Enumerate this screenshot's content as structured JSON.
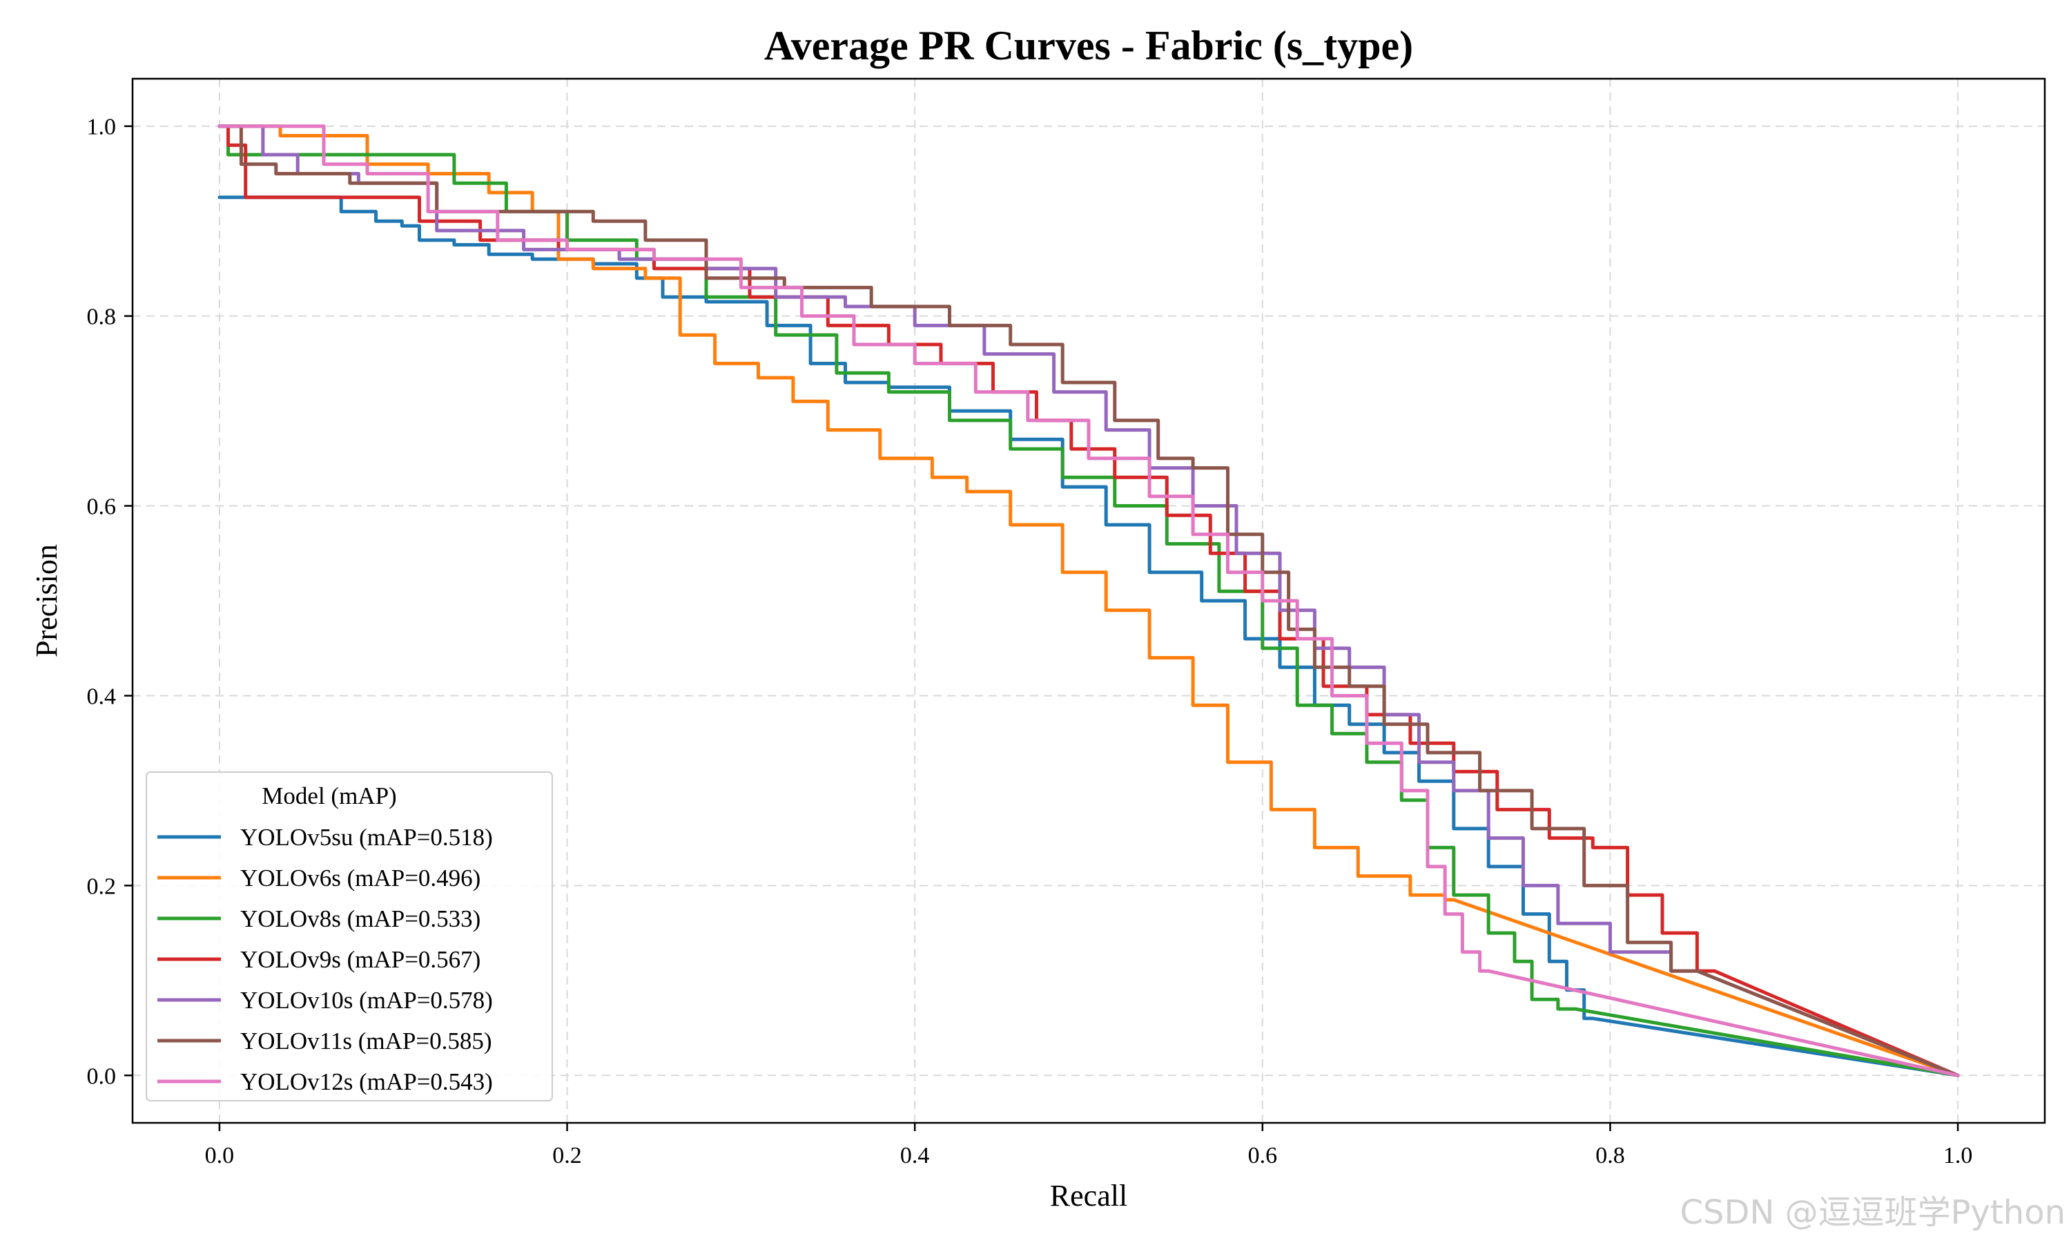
{
  "chart_data": {
    "type": "line",
    "title": "Average PR Curves - Fabric (s_type)",
    "xlabel": "Recall",
    "ylabel": "Precision",
    "xlim": [
      -0.05,
      1.05
    ],
    "ylim": [
      -0.05,
      1.05
    ],
    "xticks": [
      "0.0",
      "0.2",
      "0.4",
      "0.6",
      "0.8",
      "1.0"
    ],
    "yticks": [
      "0.0",
      "0.2",
      "0.4",
      "0.6",
      "0.8",
      "1.0"
    ],
    "grid": true,
    "legend": {
      "title": "Model (mAP)",
      "placement": "lower-left"
    },
    "series": [
      {
        "name": "YOLOv5su (mAP=0.518)",
        "color": "#1f77b4",
        "points": [
          [
            0.0,
            0.925
          ],
          [
            0.06,
            0.925
          ],
          [
            0.08,
            0.91
          ],
          [
            0.1,
            0.9
          ],
          [
            0.11,
            0.895
          ],
          [
            0.12,
            0.88
          ],
          [
            0.15,
            0.875
          ],
          [
            0.16,
            0.865
          ],
          [
            0.2,
            0.86
          ],
          [
            0.23,
            0.855
          ],
          [
            0.25,
            0.84
          ],
          [
            0.26,
            0.82
          ],
          [
            0.3,
            0.815
          ],
          [
            0.33,
            0.79
          ],
          [
            0.35,
            0.75
          ],
          [
            0.37,
            0.73
          ],
          [
            0.4,
            0.725
          ],
          [
            0.44,
            0.7
          ],
          [
            0.47,
            0.67
          ],
          [
            0.5,
            0.62
          ],
          [
            0.52,
            0.58
          ],
          [
            0.55,
            0.53
          ],
          [
            0.58,
            0.5
          ],
          [
            0.6,
            0.46
          ],
          [
            0.62,
            0.43
          ],
          [
            0.64,
            0.39
          ],
          [
            0.66,
            0.37
          ],
          [
            0.68,
            0.34
          ],
          [
            0.7,
            0.31
          ],
          [
            0.72,
            0.26
          ],
          [
            0.74,
            0.22
          ],
          [
            0.76,
            0.17
          ],
          [
            0.77,
            0.12
          ],
          [
            0.78,
            0.09
          ],
          [
            0.79,
            0.06
          ],
          [
            1.0,
            0.0
          ]
        ]
      },
      {
        "name": "YOLOv6s (mAP=0.496)",
        "color": "#ff7f0e",
        "points": [
          [
            0.0,
            1.0
          ],
          [
            0.07,
            0.99
          ],
          [
            0.1,
            0.96
          ],
          [
            0.14,
            0.95
          ],
          [
            0.17,
            0.93
          ],
          [
            0.19,
            0.91
          ],
          [
            0.2,
            0.86
          ],
          [
            0.23,
            0.85
          ],
          [
            0.26,
            0.84
          ],
          [
            0.27,
            0.78
          ],
          [
            0.3,
            0.75
          ],
          [
            0.32,
            0.735
          ],
          [
            0.34,
            0.71
          ],
          [
            0.36,
            0.68
          ],
          [
            0.4,
            0.65
          ],
          [
            0.42,
            0.63
          ],
          [
            0.44,
            0.615
          ],
          [
            0.47,
            0.58
          ],
          [
            0.5,
            0.53
          ],
          [
            0.52,
            0.49
          ],
          [
            0.55,
            0.44
          ],
          [
            0.57,
            0.39
          ],
          [
            0.59,
            0.33
          ],
          [
            0.62,
            0.28
          ],
          [
            0.64,
            0.24
          ],
          [
            0.67,
            0.21
          ],
          [
            0.7,
            0.19
          ],
          [
            0.71,
            0.185
          ],
          [
            1.0,
            0.0
          ]
        ]
      },
      {
        "name": "YOLOv8s (mAP=0.533)",
        "color": "#2ca02c",
        "points": [
          [
            0.0,
            1.0
          ],
          [
            0.01,
            0.97
          ],
          [
            0.12,
            0.97
          ],
          [
            0.15,
            0.94
          ],
          [
            0.18,
            0.91
          ],
          [
            0.22,
            0.88
          ],
          [
            0.26,
            0.86
          ],
          [
            0.3,
            0.82
          ],
          [
            0.34,
            0.78
          ],
          [
            0.37,
            0.74
          ],
          [
            0.4,
            0.72
          ],
          [
            0.44,
            0.69
          ],
          [
            0.47,
            0.66
          ],
          [
            0.5,
            0.63
          ],
          [
            0.53,
            0.6
          ],
          [
            0.56,
            0.56
          ],
          [
            0.59,
            0.51
          ],
          [
            0.61,
            0.45
          ],
          [
            0.63,
            0.39
          ],
          [
            0.65,
            0.36
          ],
          [
            0.67,
            0.33
          ],
          [
            0.69,
            0.29
          ],
          [
            0.7,
            0.24
          ],
          [
            0.72,
            0.19
          ],
          [
            0.74,
            0.15
          ],
          [
            0.75,
            0.12
          ],
          [
            0.76,
            0.08
          ],
          [
            0.78,
            0.07
          ],
          [
            1.0,
            0.0
          ]
        ]
      },
      {
        "name": "YOLOv9s (mAP=0.567)",
        "color": "#d62728",
        "points": [
          [
            0.0,
            1.0
          ],
          [
            0.01,
            0.98
          ],
          [
            0.02,
            0.925
          ],
          [
            0.1,
            0.925
          ],
          [
            0.13,
            0.9
          ],
          [
            0.17,
            0.88
          ],
          [
            0.22,
            0.87
          ],
          [
            0.28,
            0.85
          ],
          [
            0.33,
            0.82
          ],
          [
            0.37,
            0.79
          ],
          [
            0.4,
            0.77
          ],
          [
            0.43,
            0.75
          ],
          [
            0.46,
            0.72
          ],
          [
            0.48,
            0.69
          ],
          [
            0.5,
            0.66
          ],
          [
            0.53,
            0.63
          ],
          [
            0.56,
            0.59
          ],
          [
            0.58,
            0.55
          ],
          [
            0.6,
            0.51
          ],
          [
            0.62,
            0.46
          ],
          [
            0.65,
            0.41
          ],
          [
            0.67,
            0.38
          ],
          [
            0.7,
            0.35
          ],
          [
            0.72,
            0.32
          ],
          [
            0.75,
            0.28
          ],
          [
            0.78,
            0.25
          ],
          [
            0.8,
            0.24
          ],
          [
            0.82,
            0.19
          ],
          [
            0.84,
            0.15
          ],
          [
            0.86,
            0.11
          ],
          [
            1.0,
            0.0
          ]
        ]
      },
      {
        "name": "YOLOv10s (mAP=0.578)",
        "color": "#9467bd",
        "points": [
          [
            0.0,
            1.0
          ],
          [
            0.02,
            1.0
          ],
          [
            0.03,
            0.97
          ],
          [
            0.06,
            0.95
          ],
          [
            0.1,
            0.94
          ],
          [
            0.15,
            0.89
          ],
          [
            0.2,
            0.87
          ],
          [
            0.26,
            0.86
          ],
          [
            0.3,
            0.85
          ],
          [
            0.34,
            0.82
          ],
          [
            0.38,
            0.81
          ],
          [
            0.42,
            0.79
          ],
          [
            0.46,
            0.76
          ],
          [
            0.5,
            0.72
          ],
          [
            0.52,
            0.68
          ],
          [
            0.55,
            0.64
          ],
          [
            0.57,
            0.6
          ],
          [
            0.6,
            0.55
          ],
          [
            0.62,
            0.49
          ],
          [
            0.64,
            0.45
          ],
          [
            0.66,
            0.43
          ],
          [
            0.68,
            0.38
          ],
          [
            0.7,
            0.33
          ],
          [
            0.72,
            0.3
          ],
          [
            0.74,
            0.25
          ],
          [
            0.76,
            0.2
          ],
          [
            0.78,
            0.16
          ],
          [
            0.82,
            0.13
          ],
          [
            0.85,
            0.11
          ],
          [
            1.0,
            0.0
          ]
        ]
      },
      {
        "name": "YOLOv11s (mAP=0.585)",
        "color": "#8c564b",
        "points": [
          [
            0.0,
            1.0
          ],
          [
            0.01,
            1.0
          ],
          [
            0.015,
            0.96
          ],
          [
            0.05,
            0.95
          ],
          [
            0.1,
            0.94
          ],
          [
            0.15,
            0.91
          ],
          [
            0.2,
            0.91
          ],
          [
            0.23,
            0.9
          ],
          [
            0.26,
            0.88
          ],
          [
            0.3,
            0.84
          ],
          [
            0.35,
            0.83
          ],
          [
            0.4,
            0.81
          ],
          [
            0.44,
            0.79
          ],
          [
            0.47,
            0.77
          ],
          [
            0.5,
            0.73
          ],
          [
            0.53,
            0.69
          ],
          [
            0.55,
            0.65
          ],
          [
            0.57,
            0.64
          ],
          [
            0.59,
            0.57
          ],
          [
            0.61,
            0.53
          ],
          [
            0.62,
            0.47
          ],
          [
            0.64,
            0.43
          ],
          [
            0.66,
            0.41
          ],
          [
            0.68,
            0.37
          ],
          [
            0.71,
            0.34
          ],
          [
            0.74,
            0.3
          ],
          [
            0.77,
            0.26
          ],
          [
            0.8,
            0.2
          ],
          [
            0.82,
            0.14
          ],
          [
            0.85,
            0.11
          ],
          [
            1.0,
            0.0
          ]
        ]
      },
      {
        "name": "YOLOv12s (mAP=0.543)",
        "color": "#e377c2",
        "points": [
          [
            0.0,
            1.0
          ],
          [
            0.05,
            1.0
          ],
          [
            0.07,
            0.96
          ],
          [
            0.1,
            0.95
          ],
          [
            0.14,
            0.91
          ],
          [
            0.18,
            0.88
          ],
          [
            0.22,
            0.87
          ],
          [
            0.28,
            0.86
          ],
          [
            0.32,
            0.83
          ],
          [
            0.35,
            0.8
          ],
          [
            0.38,
            0.77
          ],
          [
            0.42,
            0.75
          ],
          [
            0.45,
            0.72
          ],
          [
            0.48,
            0.69
          ],
          [
            0.52,
            0.65
          ],
          [
            0.55,
            0.61
          ],
          [
            0.57,
            0.57
          ],
          [
            0.59,
            0.53
          ],
          [
            0.61,
            0.5
          ],
          [
            0.63,
            0.46
          ],
          [
            0.65,
            0.4
          ],
          [
            0.67,
            0.35
          ],
          [
            0.69,
            0.3
          ],
          [
            0.7,
            0.22
          ],
          [
            0.71,
            0.17
          ],
          [
            0.72,
            0.13
          ],
          [
            0.73,
            0.11
          ],
          [
            1.0,
            0.0
          ]
        ]
      }
    ]
  },
  "watermark": "CSDN @逗逗班学Python"
}
